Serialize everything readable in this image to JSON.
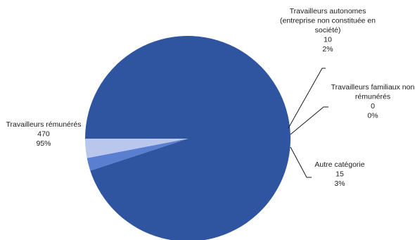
{
  "chart_data": {
    "type": "pie",
    "title": "",
    "slices": [
      {
        "lines": [
          "Travailleurs rémunérés"
        ],
        "value": 470,
        "value_text": "470",
        "percent_text": "95%",
        "color": "#2f55a0"
      },
      {
        "lines": [
          "Travailleurs autonomes",
          "(entreprise non constituée en",
          "société)"
        ],
        "value": 10,
        "value_text": "10",
        "percent_text": "2%",
        "color": "#5b7fd0"
      },
      {
        "lines": [
          "Travailleurs familiaux non",
          "rémunérés"
        ],
        "value": 0,
        "value_text": "0",
        "percent_text": "0%",
        "color": "#8fa5dd"
      },
      {
        "lines": [
          "Autre catégorie"
        ],
        "value": 15,
        "value_text": "15",
        "percent_text": "3%",
        "color": "#b9c7ec"
      }
    ],
    "leader_line_color": "#1a1a1a"
  }
}
